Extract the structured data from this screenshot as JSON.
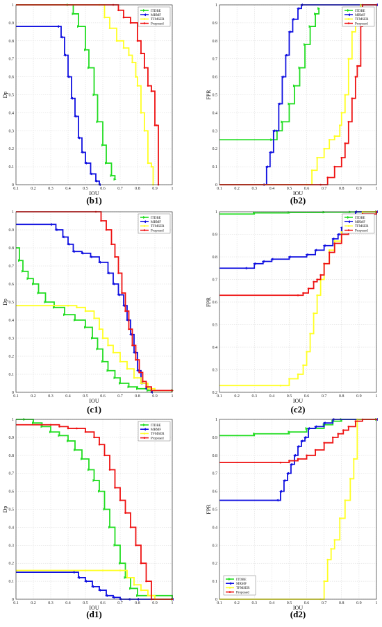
{
  "colors": {
    "ITDBE": "#22dd22",
    "MRMF": "#1010e0",
    "TFMSER": "#ffff22",
    "Proposed": "#ee1111"
  },
  "chart_data": [
    {
      "id": "b1",
      "panel_label": "(b1)",
      "type": "line",
      "xlabel": "IOU",
      "ylabel": "Dp",
      "xlim": [
        0.1,
        1
      ],
      "ylim": [
        0,
        1
      ],
      "grid": true,
      "legend_position": "top-right",
      "xticks": [
        "0.1",
        "0.2",
        "0.3",
        "0.4",
        "0.5",
        "0.6",
        "0.7",
        "0.8",
        "0.9",
        "1"
      ],
      "yticks": [
        "0",
        "0.1",
        "0.2",
        "0.3",
        "0.4",
        "0.5",
        "0.6",
        "0.7",
        "0.8",
        "0.9",
        "1"
      ],
      "series": [
        {
          "name": "ITDBE",
          "x": [
            0.1,
            0.4,
            0.43,
            0.46,
            0.5,
            0.52,
            0.55,
            0.57,
            0.6,
            0.62,
            0.65,
            0.67
          ],
          "y": [
            1,
            1,
            0.95,
            0.88,
            0.75,
            0.65,
            0.5,
            0.35,
            0.22,
            0.12,
            0.05,
            0.03
          ]
        },
        {
          "name": "MRMF",
          "x": [
            0.1,
            0.34,
            0.36,
            0.38,
            0.4,
            0.42,
            0.44,
            0.46,
            0.48,
            0.5,
            0.53,
            0.56,
            0.58
          ],
          "y": [
            0.88,
            0.88,
            0.82,
            0.72,
            0.6,
            0.48,
            0.38,
            0.26,
            0.18,
            0.12,
            0.06,
            0.02,
            0
          ]
        },
        {
          "name": "TFMSER",
          "x": [
            0.1,
            0.58,
            0.61,
            0.64,
            0.68,
            0.72,
            0.75,
            0.77,
            0.79,
            0.8,
            0.82,
            0.84,
            0.86,
            0.88,
            0.89
          ],
          "y": [
            1,
            1,
            0.93,
            0.87,
            0.8,
            0.76,
            0.72,
            0.68,
            0.6,
            0.55,
            0.4,
            0.3,
            0.12,
            0.1,
            0
          ]
        },
        {
          "name": "Proposed",
          "x": [
            0.1,
            0.66,
            0.69,
            0.72,
            0.76,
            0.8,
            0.82,
            0.84,
            0.86,
            0.88,
            0.9,
            0.91,
            0.92
          ],
          "y": [
            1,
            1,
            0.97,
            0.93,
            0.9,
            0.8,
            0.73,
            0.65,
            0.55,
            0.52,
            0.33,
            0.33,
            0
          ]
        }
      ]
    },
    {
      "id": "b2",
      "panel_label": "(b2)",
      "type": "line",
      "xlabel": "IOU",
      "ylabel": "FPR",
      "xlim": [
        0.1,
        1
      ],
      "ylim": [
        0,
        1
      ],
      "grid": true,
      "legend_position": "top-right",
      "xticks": [
        "0.1",
        "0.2",
        "0.3",
        "0.4",
        "0.5",
        "0.6",
        "0.7",
        "0.8",
        "0.9",
        "1"
      ],
      "yticks": [
        "0",
        "0.1",
        "0.2",
        "0.3",
        "0.4",
        "0.5",
        "0.6",
        "0.7",
        "0.8",
        "0.9",
        "1"
      ],
      "series": [
        {
          "name": "ITDBE",
          "x": [
            0.1,
            0.4,
            0.43,
            0.46,
            0.5,
            0.53,
            0.56,
            0.59,
            0.62,
            0.65,
            0.67
          ],
          "y": [
            0.25,
            0.25,
            0.3,
            0.35,
            0.45,
            0.55,
            0.65,
            0.78,
            0.88,
            0.95,
            0.98
          ]
        },
        {
          "name": "MRMF",
          "x": [
            0.1,
            0.35,
            0.37,
            0.39,
            0.41,
            0.44,
            0.46,
            0.48,
            0.5,
            0.52,
            0.55,
            0.57,
            1
          ],
          "y": [
            0,
            0,
            0.1,
            0.18,
            0.3,
            0.45,
            0.6,
            0.72,
            0.85,
            0.92,
            0.98,
            1,
            1
          ]
        },
        {
          "name": "TFMSER",
          "x": [
            0.1,
            0.6,
            0.63,
            0.66,
            0.7,
            0.73,
            0.76,
            0.79,
            0.8,
            0.82,
            0.84,
            0.86,
            0.88,
            0.9,
            0.91
          ],
          "y": [
            0,
            0,
            0.08,
            0.15,
            0.2,
            0.25,
            0.27,
            0.33,
            0.4,
            0.5,
            0.7,
            0.85,
            0.9,
            0.92,
            1
          ]
        },
        {
          "name": "Proposed",
          "x": [
            0.1,
            0.68,
            0.72,
            0.76,
            0.8,
            0.82,
            0.84,
            0.86,
            0.88,
            0.89,
            0.9,
            0.91,
            0.92,
            1
          ],
          "y": [
            0,
            0,
            0.04,
            0.1,
            0.15,
            0.23,
            0.35,
            0.48,
            0.6,
            0.66,
            0.66,
            0.88,
            1,
            1
          ]
        }
      ]
    },
    {
      "id": "c1",
      "panel_label": "(c1)",
      "type": "line",
      "xlabel": "IOU",
      "ylabel": "Dp",
      "xlim": [
        0.1,
        1
      ],
      "ylim": [
        0,
        1
      ],
      "grid": true,
      "legend_position": "top-right",
      "xticks": [
        "0.1",
        "0.2",
        "0.3",
        "0.4",
        "0.5",
        "0.6",
        "0.7",
        "0.8",
        "0.9",
        "1"
      ],
      "yticks": [
        "0",
        "0.1",
        "0.2",
        "0.3",
        "0.4",
        "0.5",
        "0.6",
        "0.7",
        "0.8",
        "0.9",
        "1"
      ],
      "series": [
        {
          "name": "ITDBE",
          "x": [
            0.1,
            0.12,
            0.14,
            0.17,
            0.2,
            0.23,
            0.27,
            0.32,
            0.38,
            0.44,
            0.5,
            0.54,
            0.57,
            0.6,
            0.63,
            0.67,
            0.7,
            0.75,
            0.8,
            0.86,
            1
          ],
          "y": [
            0.8,
            0.73,
            0.67,
            0.63,
            0.6,
            0.55,
            0.5,
            0.47,
            0.43,
            0.4,
            0.36,
            0.3,
            0.24,
            0.17,
            0.12,
            0.08,
            0.05,
            0.03,
            0.02,
            0.01,
            0.01
          ]
        },
        {
          "name": "MRMF",
          "x": [
            0.1,
            0.3,
            0.33,
            0.37,
            0.4,
            0.43,
            0.48,
            0.53,
            0.58,
            0.63,
            0.66,
            0.69,
            0.72,
            0.74,
            0.76,
            0.78,
            0.8,
            0.82,
            0.85,
            0.88
          ],
          "y": [
            0.93,
            0.93,
            0.9,
            0.86,
            0.82,
            0.78,
            0.77,
            0.75,
            0.72,
            0.66,
            0.6,
            0.54,
            0.48,
            0.4,
            0.32,
            0.22,
            0.12,
            0.05,
            0.02,
            0
          ]
        },
        {
          "name": "TFMSER",
          "x": [
            0.1,
            0.4,
            0.45,
            0.5,
            0.55,
            0.58,
            0.6,
            0.63,
            0.66,
            0.7,
            0.74,
            0.78,
            0.82,
            0.86,
            0.9,
            1
          ],
          "y": [
            0.48,
            0.48,
            0.47,
            0.45,
            0.41,
            0.35,
            0.3,
            0.26,
            0.22,
            0.17,
            0.13,
            0.08,
            0.05,
            0.02,
            0.01,
            0.01
          ]
        },
        {
          "name": "Proposed",
          "x": [
            0.1,
            0.56,
            0.59,
            0.62,
            0.65,
            0.67,
            0.69,
            0.71,
            0.73,
            0.75,
            0.77,
            0.79,
            0.81,
            0.83,
            0.85,
            0.88,
            1
          ],
          "y": [
            1,
            1,
            0.95,
            0.9,
            0.82,
            0.75,
            0.66,
            0.55,
            0.45,
            0.35,
            0.26,
            0.18,
            0.11,
            0.06,
            0.03,
            0.01,
            0.01
          ]
        }
      ]
    },
    {
      "id": "c2",
      "panel_label": "(c2)",
      "type": "line",
      "xlabel": "IOU",
      "ylabel": "FPR",
      "xlim": [
        0.1,
        1
      ],
      "ylim": [
        0.2,
        1
      ],
      "grid": true,
      "legend_position": "top-right",
      "xticks": [
        "0.1",
        "0.2",
        "0.3",
        "0.4",
        "0.5",
        "0.6",
        "0.7",
        "0.8",
        "0.9",
        "1"
      ],
      "yticks": [
        "0.2",
        "0.3",
        "0.4",
        "0.5",
        "0.6",
        "0.7",
        "0.8",
        "0.9",
        "1"
      ],
      "series": [
        {
          "name": "ITDBE",
          "x": [
            0.1,
            0.3,
            0.5,
            0.7,
            0.85,
            1
          ],
          "y": [
            0.99,
            0.995,
            0.997,
            0.998,
            0.999,
            1
          ]
        },
        {
          "name": "MRMF",
          "x": [
            0.1,
            0.25,
            0.3,
            0.35,
            0.4,
            0.5,
            0.6,
            0.65,
            0.7,
            0.75,
            0.78,
            0.8,
            0.82,
            0.85,
            0.88,
            1
          ],
          "y": [
            0.75,
            0.75,
            0.77,
            0.78,
            0.79,
            0.8,
            0.81,
            0.83,
            0.85,
            0.88,
            0.9,
            0.93,
            0.96,
            0.98,
            1,
            1
          ]
        },
        {
          "name": "TFMSER",
          "x": [
            0.1,
            0.45,
            0.5,
            0.55,
            0.58,
            0.6,
            0.62,
            0.64,
            0.66,
            0.68,
            0.7,
            0.73,
            0.76,
            0.8,
            0.84,
            0.88,
            0.92,
            1
          ],
          "y": [
            0.23,
            0.23,
            0.26,
            0.28,
            0.32,
            0.38,
            0.46,
            0.55,
            0.63,
            0.7,
            0.77,
            0.83,
            0.87,
            0.91,
            0.95,
            0.98,
            1,
            1
          ]
        },
        {
          "name": "Proposed",
          "x": [
            0.1,
            0.55,
            0.58,
            0.61,
            0.64,
            0.66,
            0.68,
            0.7,
            0.73,
            0.76,
            0.8,
            0.84,
            0.88,
            0.92,
            1
          ],
          "y": [
            0.63,
            0.63,
            0.64,
            0.66,
            0.69,
            0.7,
            0.72,
            0.77,
            0.82,
            0.86,
            0.9,
            0.94,
            0.97,
            0.99,
            1
          ]
        }
      ]
    },
    {
      "id": "d1",
      "panel_label": "(d1)",
      "type": "line",
      "xlabel": "IOU",
      "ylabel": "Dp",
      "xlim": [
        0.1,
        1
      ],
      "ylim": [
        0,
        1
      ],
      "grid": true,
      "legend_position": "top-right",
      "xticks": [
        "0.1",
        "0.2",
        "0.3",
        "0.4",
        "0.5",
        "0.6",
        "0.7",
        "0.8",
        "0.9",
        "1"
      ],
      "yticks": [
        "0",
        "0.1",
        "0.2",
        "0.3",
        "0.4",
        "0.5",
        "0.6",
        "0.7",
        "0.8",
        "0.9",
        "1"
      ],
      "series": [
        {
          "name": "ITDBE",
          "x": [
            0.1,
            0.15,
            0.2,
            0.25,
            0.3,
            0.35,
            0.4,
            0.44,
            0.48,
            0.52,
            0.55,
            0.58,
            0.61,
            0.64,
            0.67,
            0.7,
            0.73,
            0.76,
            0.8,
            1
          ],
          "y": [
            1,
            1,
            0.98,
            0.96,
            0.93,
            0.91,
            0.88,
            0.83,
            0.78,
            0.72,
            0.66,
            0.6,
            0.5,
            0.4,
            0.3,
            0.2,
            0.12,
            0.06,
            0.02,
            0
          ]
        },
        {
          "name": "MRMF",
          "x": [
            0.1,
            0.43,
            0.46,
            0.5,
            0.54,
            0.58,
            0.62,
            0.66,
            0.7,
            0.75,
            0.8,
            1
          ],
          "y": [
            0.15,
            0.15,
            0.12,
            0.1,
            0.07,
            0.05,
            0.02,
            0.01,
            0,
            0,
            0,
            0
          ]
        },
        {
          "name": "TFMSER",
          "x": [
            0.1,
            0.5,
            0.6,
            0.7,
            0.74,
            0.78,
            0.82,
            0.86,
            0.9,
            1
          ],
          "y": [
            0.16,
            0.16,
            0.16,
            0.16,
            0.12,
            0.08,
            0.05,
            0.02,
            0,
            0
          ]
        },
        {
          "name": "Proposed",
          "x": [
            0.1,
            0.3,
            0.35,
            0.4,
            0.45,
            0.5,
            0.55,
            0.58,
            0.61,
            0.64,
            0.67,
            0.7,
            0.73,
            0.76,
            0.79,
            0.82,
            0.85,
            0.88,
            1
          ],
          "y": [
            0.97,
            0.97,
            0.96,
            0.95,
            0.95,
            0.93,
            0.9,
            0.86,
            0.8,
            0.72,
            0.62,
            0.55,
            0.48,
            0.4,
            0.3,
            0.2,
            0.1,
            0,
            0
          ]
        }
      ]
    },
    {
      "id": "d2",
      "panel_label": "(d2)",
      "type": "line",
      "xlabel": "IOU",
      "ylabel": "FPR",
      "xlim": [
        0.1,
        1
      ],
      "ylim": [
        0,
        1
      ],
      "grid": true,
      "legend_position": "bottom-left",
      "xticks": [
        "0.1",
        "0.2",
        "0.3",
        "0.4",
        "0.5",
        "0.6",
        "0.7",
        "0.8",
        "0.9",
        "1"
      ],
      "yticks": [
        "0",
        "0.1",
        "0.2",
        "0.3",
        "0.4",
        "0.5",
        "0.6",
        "0.7",
        "0.8",
        "0.9",
        "1"
      ],
      "series": [
        {
          "name": "ITDBE",
          "x": [
            0.1,
            0.3,
            0.5,
            0.6,
            0.7,
            0.75,
            0.8,
            1
          ],
          "y": [
            0.91,
            0.92,
            0.93,
            0.95,
            0.97,
            0.99,
            1,
            1
          ]
        },
        {
          "name": "MRMF",
          "x": [
            0.1,
            0.43,
            0.45,
            0.47,
            0.49,
            0.51,
            0.53,
            0.55,
            0.57,
            0.59,
            0.61,
            0.65,
            0.7,
            0.75,
            1
          ],
          "y": [
            0.55,
            0.55,
            0.6,
            0.66,
            0.7,
            0.75,
            0.8,
            0.85,
            0.88,
            0.9,
            0.95,
            0.96,
            0.98,
            1,
            1
          ]
        },
        {
          "name": "TFMSER",
          "x": [
            0.1,
            0.68,
            0.7,
            0.72,
            0.74,
            0.76,
            0.79,
            0.82,
            0.85,
            0.87,
            0.89,
            1
          ],
          "y": [
            0,
            0,
            0.1,
            0.22,
            0.28,
            0.33,
            0.45,
            0.55,
            0.67,
            0.78,
            1,
            1
          ]
        },
        {
          "name": "Proposed",
          "x": [
            0.1,
            0.45,
            0.5,
            0.55,
            0.6,
            0.65,
            0.7,
            0.75,
            0.78,
            0.81,
            0.84,
            0.88,
            0.92,
            1
          ],
          "y": [
            0.76,
            0.76,
            0.77,
            0.78,
            0.8,
            0.83,
            0.87,
            0.9,
            0.92,
            0.94,
            0.96,
            0.99,
            1,
            1
          ]
        }
      ]
    }
  ]
}
